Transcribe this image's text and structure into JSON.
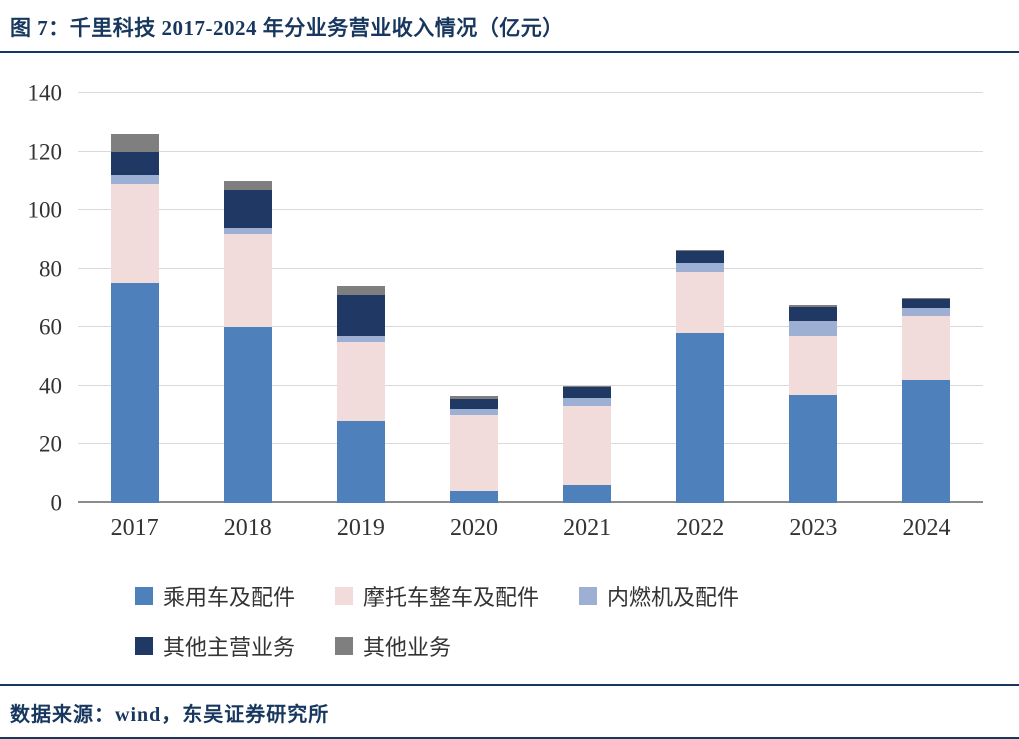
{
  "header": {
    "title": "图 7：千里科技 2017-2024 年分业务营业收入情况（亿元）"
  },
  "footer": {
    "source": "数据来源：wind，东吴证券研究所"
  },
  "chart_data": {
    "type": "bar",
    "stacked": true,
    "title": "千里科技 2017-2024 年分业务营业收入情况（亿元）",
    "xlabel": "",
    "ylabel": "",
    "ylim": [
      0,
      140
    ],
    "ytick_step": 20,
    "grid": true,
    "legend_position": "bottom",
    "categories": [
      "2017",
      "2018",
      "2019",
      "2020",
      "2021",
      "2022",
      "2023",
      "2024"
    ],
    "series": [
      {
        "name": "乘用车及配件",
        "color": "#4E80BC",
        "values": [
          75,
          60,
          28,
          4,
          6,
          58,
          37,
          42
        ]
      },
      {
        "name": "摩托车整车及配件",
        "color": "#F1DCDB",
        "values": [
          34,
          32,
          27,
          26,
          27,
          21,
          20,
          22
        ]
      },
      {
        "name": "内燃机及配件",
        "color": "#9EAFD4",
        "values": [
          3,
          2,
          2,
          2,
          3,
          3,
          5,
          2.5
        ]
      },
      {
        "name": "其他主营业务",
        "color": "#1F3864",
        "values": [
          8,
          13,
          14,
          3.5,
          3.5,
          4,
          5,
          3
        ]
      },
      {
        "name": "其他业务",
        "color": "#7F7F7F",
        "values": [
          6,
          3,
          3,
          1,
          0.5,
          0.5,
          0.5,
          0.5
        ]
      }
    ],
    "colors": {
      "accent_navy": "#17375E",
      "gridline": "#D9D9D9",
      "axis_line": "#8C8C8C"
    }
  }
}
